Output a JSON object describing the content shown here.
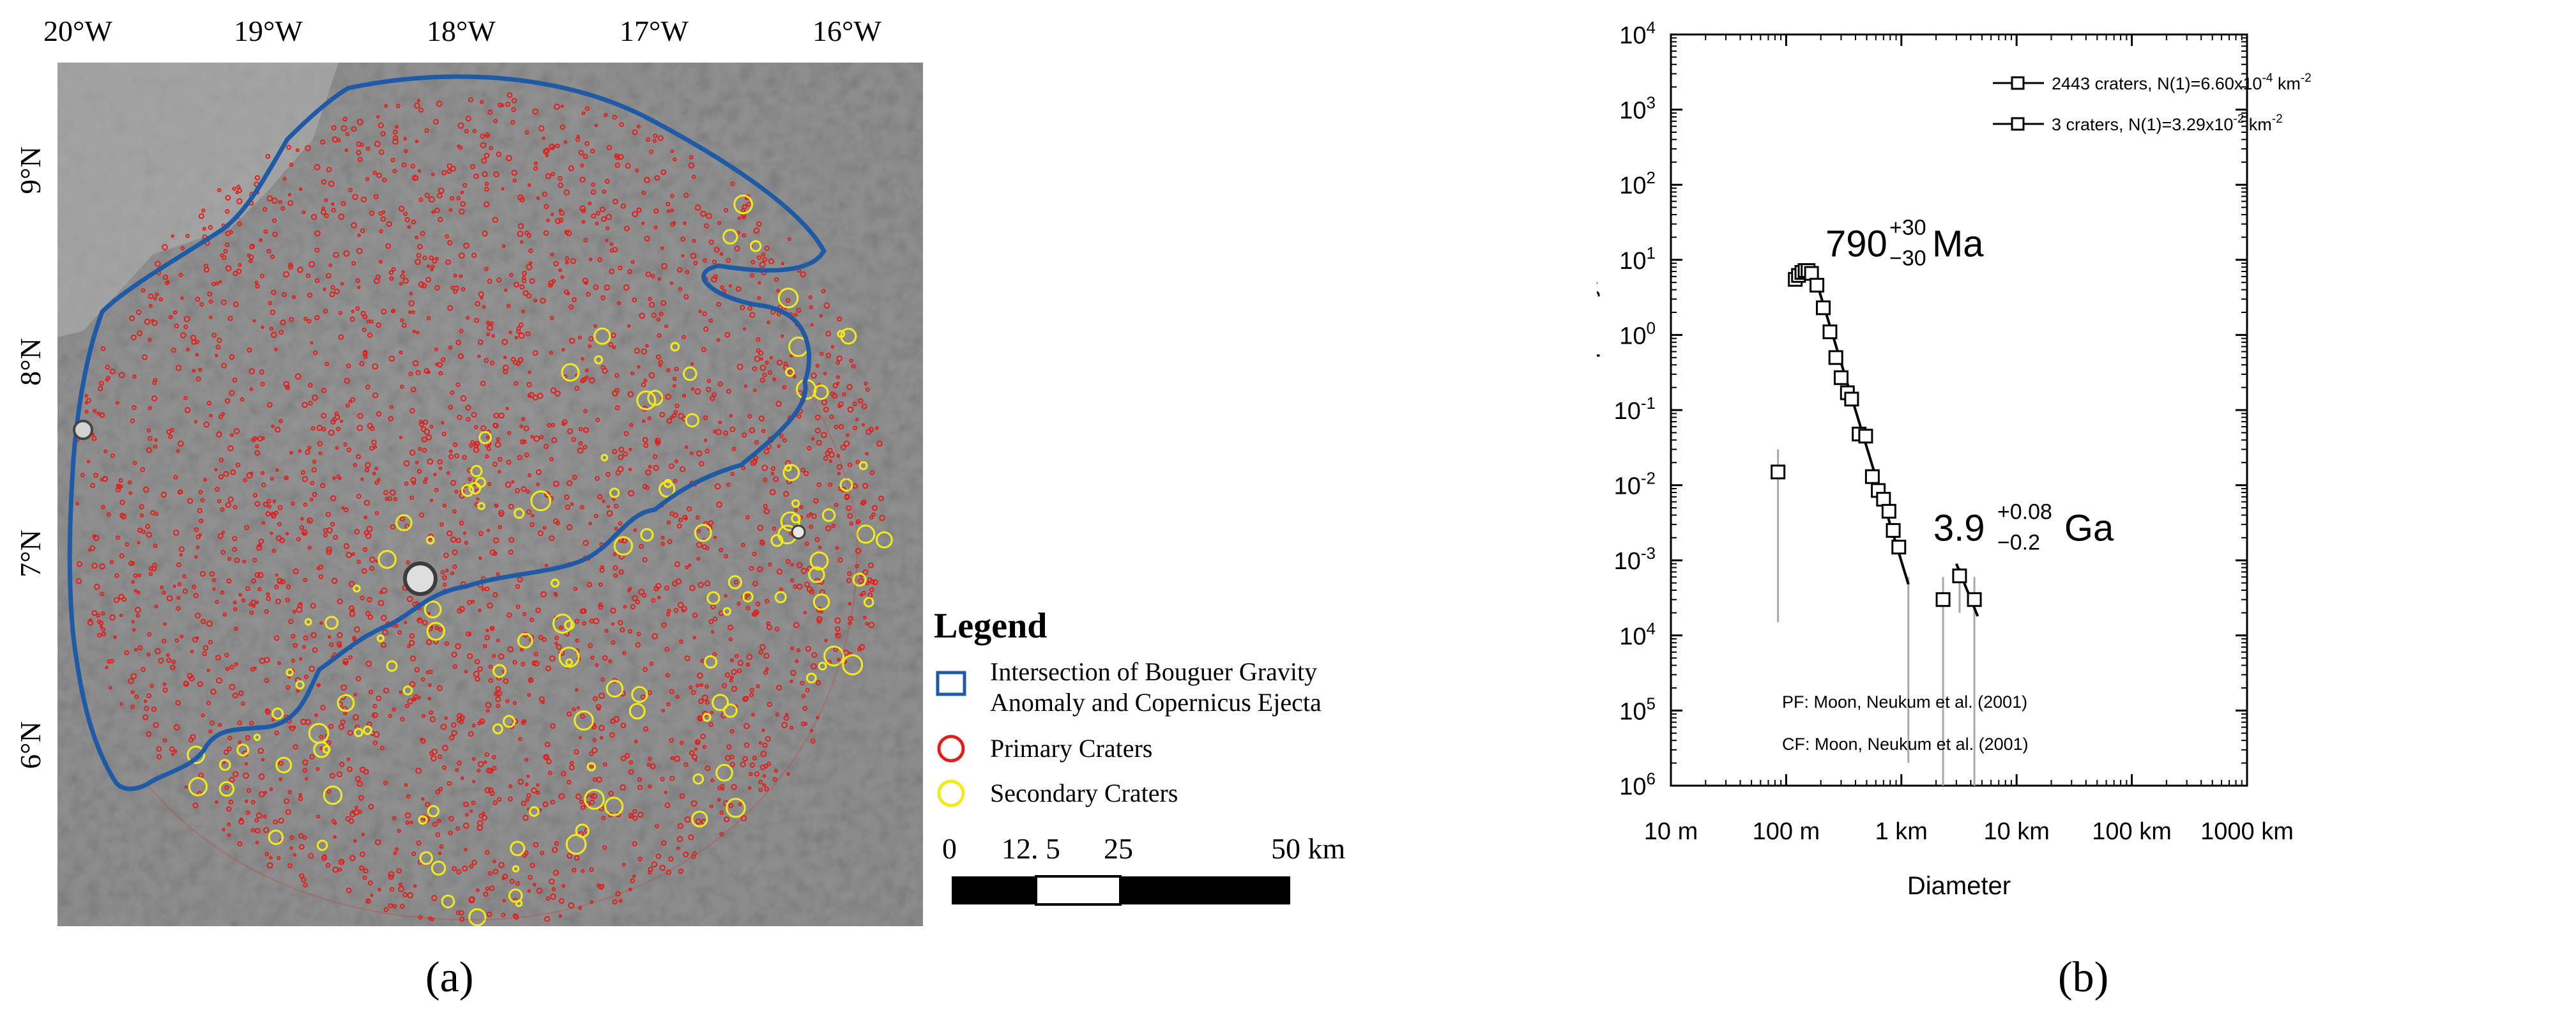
{
  "panel_a": {
    "label": "(a)",
    "map": {
      "lon_ticks": [
        "20°W",
        "19°W",
        "18°W",
        "17°W",
        "16°W"
      ],
      "lat_ticks": [
        "9°N",
        "8°N",
        "7°N",
        "6°N"
      ]
    },
    "legend": {
      "title": "Legend",
      "items": [
        {
          "label_1": "Intersection of Bouguer Gravity",
          "label_2": "Anomaly and Copernicus Ejecta",
          "color": "#1f5aa6",
          "symbol": "square"
        },
        {
          "label": "Primary Craters",
          "color": "#e0201c",
          "symbol": "circle"
        },
        {
          "label": "Secondary Craters",
          "color": "#f2ea1a",
          "symbol": "circle"
        }
      ]
    },
    "scale_bar": {
      "labels": [
        "0",
        "12. 5",
        "25",
        "50 km"
      ]
    }
  },
  "panel_b": {
    "label": "(b)",
    "chart_data": {
      "type": "scatter",
      "x_scale": "log",
      "y_scale": "log",
      "xlabel": "Diameter",
      "ylabel": "Differential crater frequency, km",
      "ylabel_sup": "-3",
      "x_ticks": [
        "10 m",
        "100 m",
        "1 km",
        "10 km",
        "100 km",
        "1000 km"
      ],
      "y_ticks": [
        {
          "base": "10",
          "exp": "4"
        },
        {
          "base": "10",
          "exp": "3"
        },
        {
          "base": "10",
          "exp": "2"
        },
        {
          "base": "10",
          "exp": "1"
        },
        {
          "base": "10",
          "exp": "0"
        },
        {
          "base": "10",
          "exp": "-1"
        },
        {
          "base": "10",
          "exp": "-2"
        },
        {
          "base": "10",
          "exp": "-3"
        },
        {
          "base": "10",
          "exp": "4"
        },
        {
          "base": "10",
          "exp": "5"
        },
        {
          "base": "10",
          "exp": "6"
        }
      ],
      "xlim_km": [
        0.01,
        1000
      ],
      "ylim_exp": [
        -6,
        4
      ],
      "grid": false,
      "legend_position": "top-right",
      "series": [
        {
          "name": "2443 craters, N(1)=6.60x10-4 km-2",
          "legend_main": "2443 craters, N(1)=6.60x10",
          "legend_sup1": "-4",
          "legend_mid": " km",
          "legend_sup2": "-2",
          "points": [
            [
              0.085,
              0.015
            ],
            [
              0.12,
              5.5
            ],
            [
              0.128,
              6.2
            ],
            [
              0.137,
              6.8
            ],
            [
              0.146,
              7.2
            ],
            [
              0.155,
              7.2
            ],
            [
              0.166,
              6.6
            ],
            [
              0.185,
              4.6
            ],
            [
              0.21,
              2.3
            ],
            [
              0.24,
              1.1
            ],
            [
              0.27,
              0.5
            ],
            [
              0.3,
              0.27
            ],
            [
              0.34,
              0.17
            ],
            [
              0.37,
              0.14
            ],
            [
              0.43,
              0.048
            ],
            [
              0.49,
              0.045
            ],
            [
              0.56,
              0.013
            ],
            [
              0.63,
              0.0085
            ],
            [
              0.7,
              0.0065
            ],
            [
              0.78,
              0.0045
            ],
            [
              0.85,
              0.0025
            ],
            [
              0.95,
              0.0015
            ]
          ],
          "error_bars": [
            {
              "x": 0.085,
              "y_low": 0.00015,
              "y_high": 0.03
            },
            {
              "x": 1.15,
              "y_low": 2e-06,
              "y_high": 0.0006
            }
          ],
          "fit_line": {
            "x": [
              0.17,
              1.15
            ],
            "y": [
              7.5,
              0.00048
            ]
          },
          "fit_label": {
            "value": "790",
            "plus": "+30",
            "minus": "−30",
            "unit": "Ma"
          }
        },
        {
          "name": "3 craters, N(1)=3.29x10-2 km-2",
          "legend_main": "3 craters, N(1)=3.29x10",
          "legend_sup1": "-2",
          "legend_mid": " km",
          "legend_sup2": "-2",
          "points": [
            [
              2.3,
              0.0003
            ],
            [
              3.2,
              0.00062
            ],
            [
              4.3,
              0.0003
            ]
          ],
          "error_bars": [
            {
              "x": 2.3,
              "y_low": 1e-06,
              "y_high": 0.0006
            },
            {
              "x": 3.2,
              "y_low": 0.0002,
              "y_high": 0.0008
            },
            {
              "x": 4.3,
              "y_low": 1e-06,
              "y_high": 0.0006
            }
          ],
          "fit_line": {
            "x": [
              3.0,
              4.6
            ],
            "y": [
              0.0009,
              0.00018
            ]
          },
          "fit_label": {
            "value": "3.9",
            "plus": "+0.08",
            "minus": "−0.2",
            "unit": "Ga"
          }
        }
      ],
      "annotations": [
        "PF: Moon, Neukum et al. (2001)",
        "CF: Moon, Neukum et al. (2001)"
      ]
    }
  }
}
